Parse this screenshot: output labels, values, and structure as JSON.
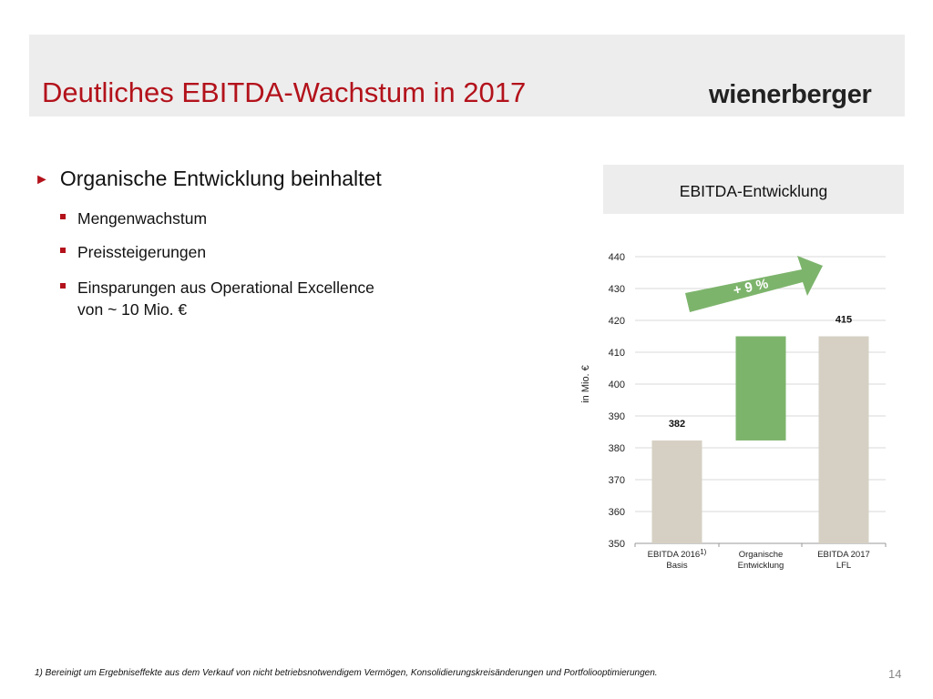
{
  "slide": {
    "title": "Deutliches EBITDA-Wachstum in 2017",
    "logo": "wienerberger",
    "bullet_main": "Organische Entwicklung beinhaltet",
    "sub_bullets": [
      "Mengenwachstum",
      "Preissteigerungen",
      "Einsparungen aus Operational Excellence"
    ],
    "sub_bullet_continuation": "von ~ 10 Mio. €",
    "footnote": "1) Bereinigt um Ergebniseffekte aus dem Verkauf von nicht betriebsnotwendigem Vermögen, Konsolidierungskreisänderungen und Portfoliooptimierungen.",
    "page_number": "14",
    "colors": {
      "accent": "#b3121b",
      "gray_bar": "#d6d0c4",
      "green": "#7db46c"
    }
  },
  "chart_data": {
    "type": "bar",
    "subtype": "waterfall",
    "title": "EBITDA-Entwicklung",
    "ylabel": "in Mio. €",
    "ylim": [
      350,
      440
    ],
    "yticks": [
      "350",
      "360",
      "370",
      "380",
      "390",
      "400",
      "410",
      "420",
      "430",
      "440"
    ],
    "grid": true,
    "categories": [
      {
        "line1": "EBITDA 2016",
        "sup": "1)",
        "line2": "Basis"
      },
      {
        "line1": "Organische",
        "sup": "",
        "line2": "Entwicklung"
      },
      {
        "line1": "EBITDA 2017",
        "sup": "",
        "line2": "LFL"
      }
    ],
    "bars": [
      {
        "start": 350,
        "end": 382.3,
        "label": "382",
        "kind": "total"
      },
      {
        "start": 382.3,
        "end": 415,
        "label": "",
        "kind": "increase"
      },
      {
        "start": 350,
        "end": 415,
        "label": "415",
        "kind": "total"
      }
    ],
    "annotation": "+ 9 %"
  }
}
